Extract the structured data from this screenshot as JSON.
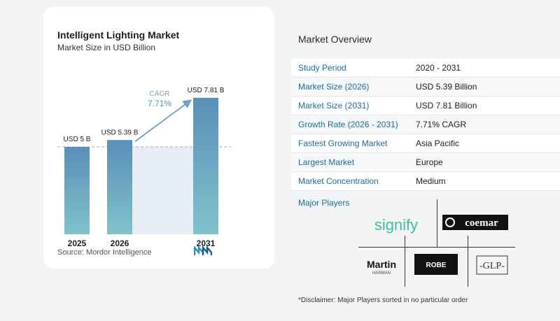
{
  "chart_data": {
    "type": "bar",
    "title": "Intelligent Lighting Market",
    "subtitle": "Market Size in USD Billion",
    "categories": [
      "2025",
      "2026",
      "2031"
    ],
    "values": [
      5,
      5.39,
      7.81
    ],
    "data_labels": [
      "USD 5 B",
      "USD 5.39 B",
      "USD 7.81 B"
    ],
    "annotation": {
      "label": "CAGR",
      "value": "7.71%"
    },
    "source": "Source:  Mordor Intelligence",
    "colors": {
      "bar_top": "#5a8fb8",
      "bar_bottom": "#7fc3cc",
      "shade": "#e6edf5",
      "arrow": "#6e9ec6"
    }
  },
  "overview": {
    "title": "Market Overview",
    "rows": [
      {
        "label": "Study Period",
        "value": "2020 - 2031"
      },
      {
        "label": "Market Size (2026)",
        "value": "USD 5.39 Billion"
      },
      {
        "label": "Market Size (2031)",
        "value": "USD 7.81 Billion"
      },
      {
        "label": "Growth Rate (2026 - 2031)",
        "value": "7.71% CAGR"
      },
      {
        "label": "Fastest Growing Market",
        "value": "Asia Pacific"
      },
      {
        "label": "Largest Market",
        "value": "Europe"
      },
      {
        "label": "Market Concentration",
        "value": "Medium"
      }
    ],
    "players_title": "Major Players",
    "players": [
      {
        "name": "signify",
        "logo": "signify-logo"
      },
      {
        "name": "coemar",
        "logo": "coemar-logo"
      },
      {
        "name": "Martin",
        "logo": "martin-logo",
        "sub": "HARMAN"
      },
      {
        "name": "ROBE",
        "logo": "robe-logo"
      },
      {
        "name": "GLP",
        "logo": "glp-logo"
      }
    ],
    "disclaimer": "*Disclaimer: Major Players sorted in no particular order"
  }
}
